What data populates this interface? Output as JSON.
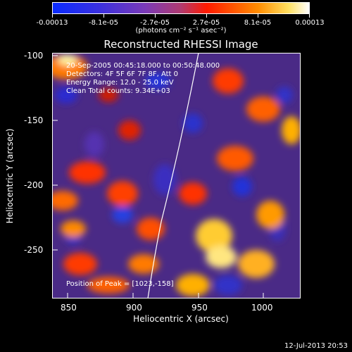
{
  "colorbar": {
    "labels": [
      "-0.00013",
      "-8.1e-05",
      "-2.7e-05",
      "2.7e-05",
      "8.1e-05",
      "0.00013"
    ],
    "units": "(photons cm⁻² s⁻¹ asec⁻²)",
    "colors": [
      "#0020ff",
      "#5a2ad0",
      "#a040a0",
      "#ff2a00",
      "#ff9a00",
      "#ffffff"
    ]
  },
  "plot": {
    "title": "Reconstructed RHESSI Image",
    "time_range": "20-Sep-2005 00:45:18.000 to 00:50:48.000",
    "detectors": "Detectors: 4F 5F 6F 7F 8F, Att 0",
    "energy_range": "Energy Range: 12.0 - 25.0 keV",
    "clean_counts": "Clean    Total counts: 9.34E+03",
    "peak": "Position of Peak = [1023,-158]",
    "xlabel": "Heliocentric X (arcsec)",
    "ylabel": "Heliocentric Y (arcsec)",
    "xticks": [
      "850",
      "900",
      "950",
      "1000"
    ],
    "yticks": [
      "-100",
      "-150",
      "-200",
      "-250"
    ]
  },
  "footer": {
    "date": "12-Jul-2013 20:53"
  }
}
